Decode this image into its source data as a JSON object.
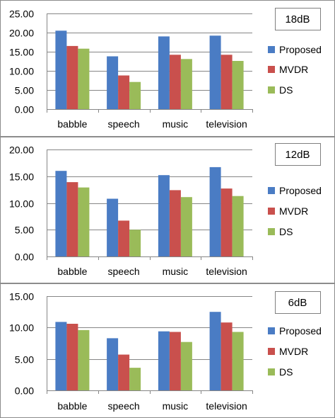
{
  "colors": {
    "Proposed": "#4a7cc4",
    "MVDR": "#c9504d",
    "DS": "#9abb59"
  },
  "chart_data": [
    {
      "type": "bar",
      "title": "18dB",
      "categories": [
        "babble",
        "speech",
        "music",
        "television"
      ],
      "ylim": [
        0,
        25
      ],
      "yticks": [
        "0.00",
        "5.00",
        "10.00",
        "15.00",
        "20.00",
        "25.00"
      ],
      "grid": true,
      "legend_position": "right",
      "series": [
        {
          "name": "Proposed",
          "values": [
            20.5,
            13.8,
            19.0,
            19.2
          ]
        },
        {
          "name": "MVDR",
          "values": [
            16.5,
            8.8,
            14.2,
            14.2
          ]
        },
        {
          "name": "DS",
          "values": [
            15.8,
            7.1,
            13.1,
            12.6
          ]
        }
      ]
    },
    {
      "type": "bar",
      "title": "12dB",
      "categories": [
        "babble",
        "speech",
        "music",
        "television"
      ],
      "ylim": [
        0,
        20
      ],
      "yticks": [
        "0.00",
        "5.00",
        "10.00",
        "15.00",
        "20.00"
      ],
      "grid": true,
      "legend_position": "right",
      "series": [
        {
          "name": "Proposed",
          "values": [
            16.0,
            10.8,
            15.2,
            16.7
          ]
        },
        {
          "name": "MVDR",
          "values": [
            13.9,
            6.7,
            12.4,
            12.7
          ]
        },
        {
          "name": "DS",
          "values": [
            12.9,
            5.0,
            11.1,
            11.3
          ]
        }
      ]
    },
    {
      "type": "bar",
      "title": "6dB",
      "categories": [
        "babble",
        "speech",
        "music",
        "television"
      ],
      "ylim": [
        0,
        15
      ],
      "yticks": [
        "0.00",
        "5.00",
        "10.00",
        "15.00"
      ],
      "grid": true,
      "legend_position": "right",
      "series": [
        {
          "name": "Proposed",
          "values": [
            10.9,
            8.3,
            9.4,
            12.5
          ]
        },
        {
          "name": "MVDR",
          "values": [
            10.6,
            5.7,
            9.3,
            10.8
          ]
        },
        {
          "name": "DS",
          "values": [
            9.6,
            3.6,
            7.7,
            9.3
          ]
        }
      ]
    }
  ]
}
